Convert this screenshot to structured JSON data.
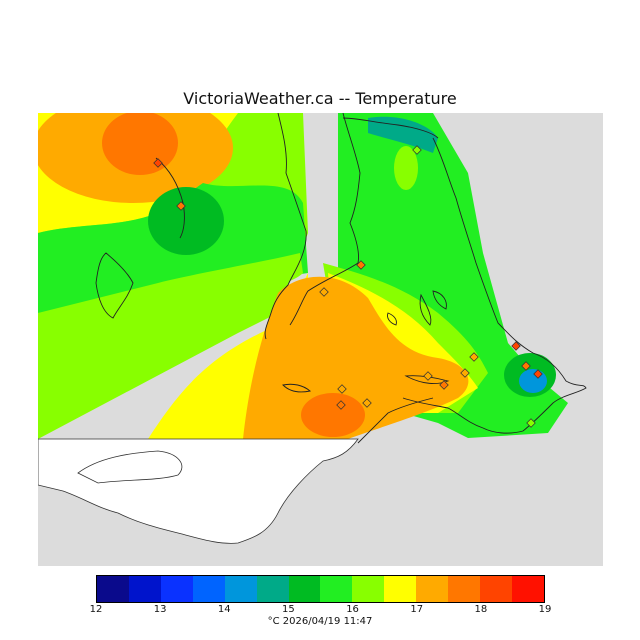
{
  "map": {
    "title": "VictoriaWeather.ca -- Temperature",
    "footer": "°C  2026/04/19 11:47",
    "colors": {
      "background": "#dcdcdc",
      "land_white": "#ffffff"
    }
  },
  "legend": {
    "ticks": [
      "12",
      "13",
      "14",
      "15",
      "16",
      "17",
      "18",
      "19"
    ],
    "colors": [
      "#0a0a8c",
      "#0014cc",
      "#0a32ff",
      "#0064ff",
      "#0096dc",
      "#00aa88",
      "#00bb22",
      "#22ee22",
      "#88ff00",
      "#ffff00",
      "#ffaa00",
      "#ff7700",
      "#ff4400",
      "#ff1100"
    ]
  }
}
